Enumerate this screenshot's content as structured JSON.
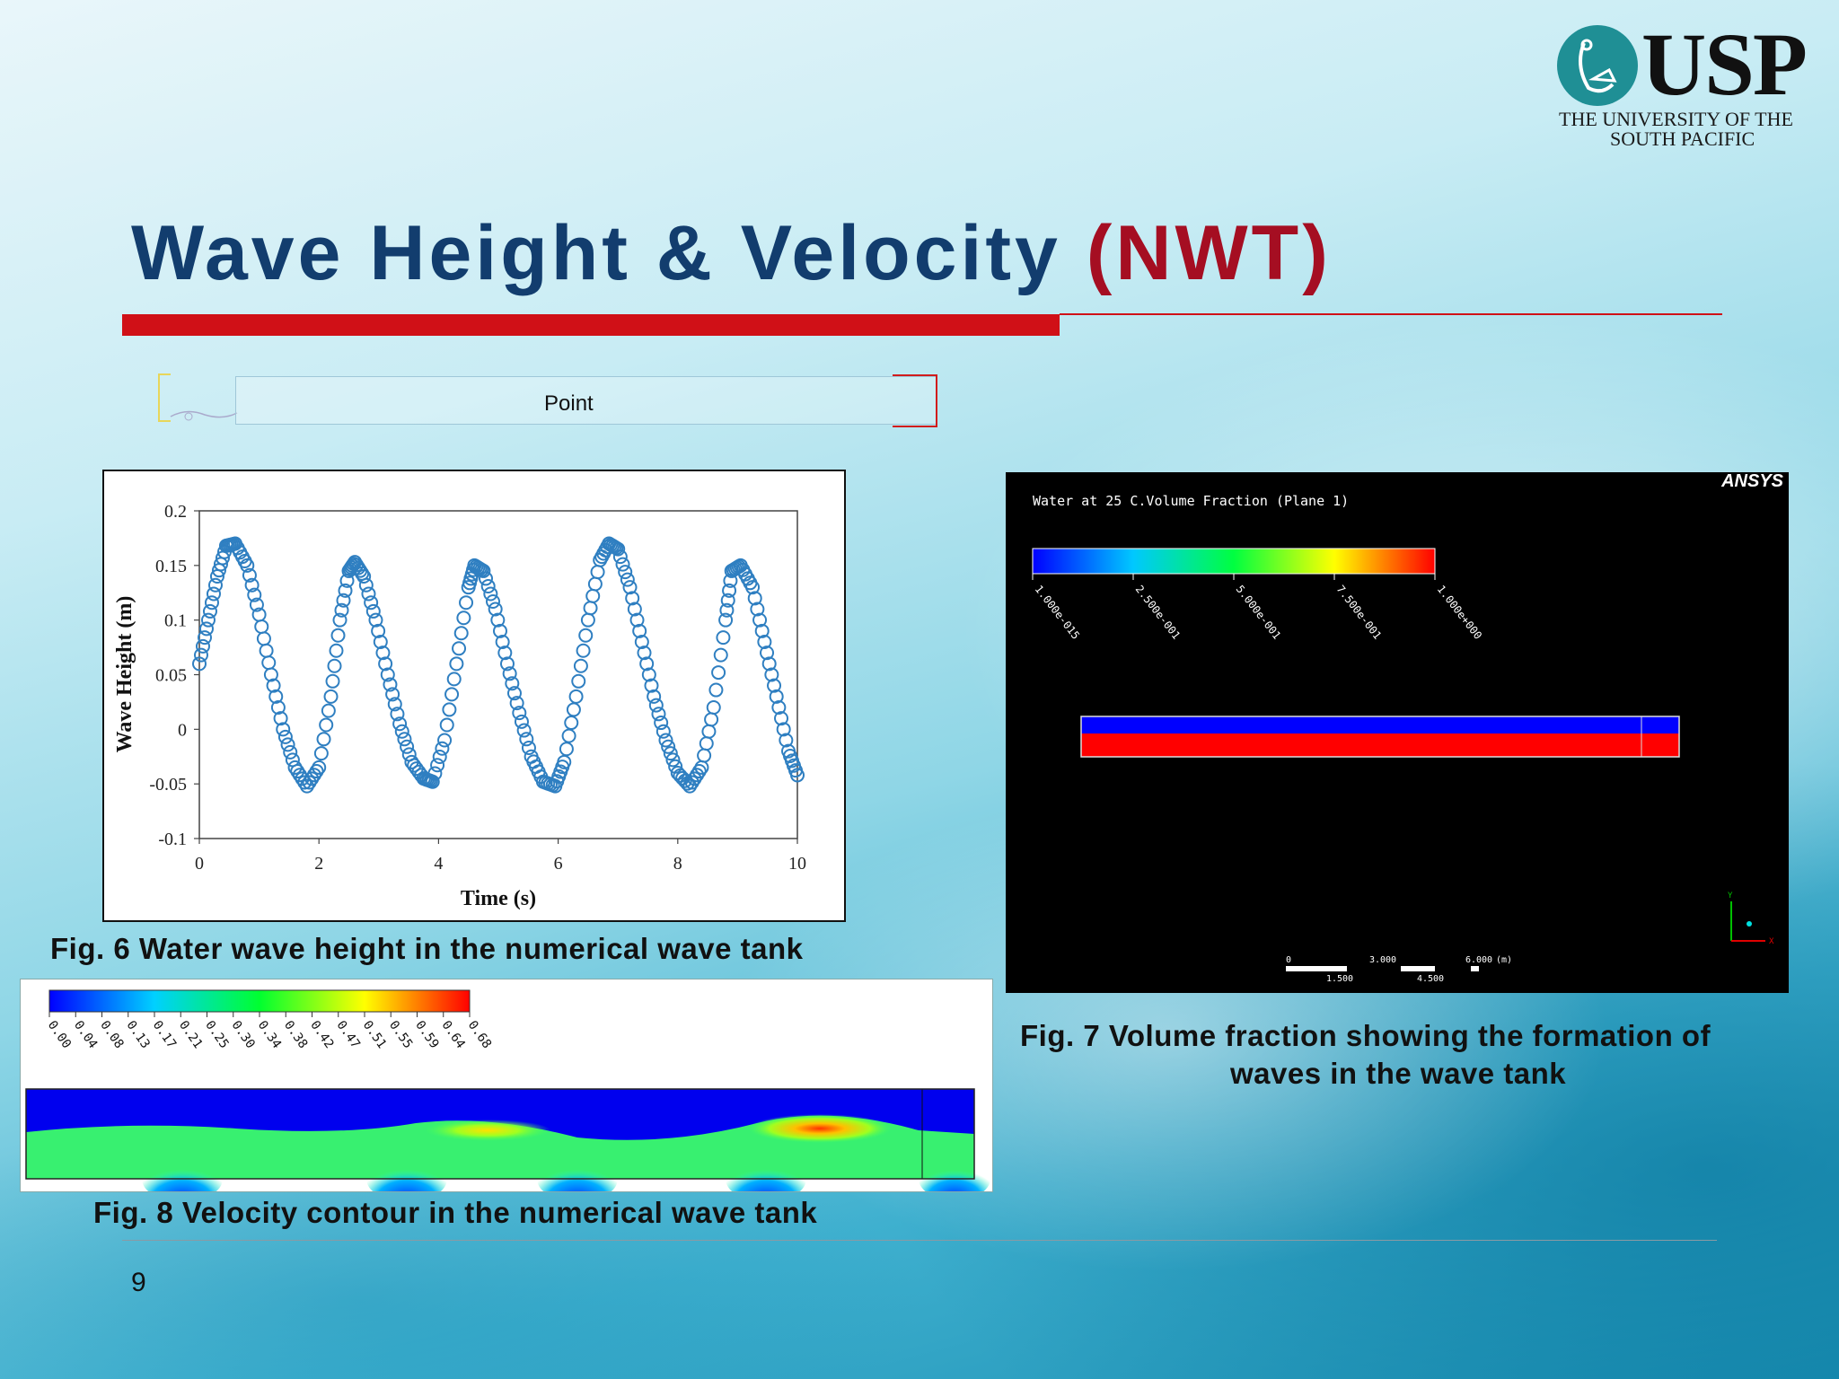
{
  "logo": {
    "name": "USP",
    "line1": "THE UNIVERSITY OF THE",
    "line2": "SOUTH PACIFIC"
  },
  "title": {
    "main": "Wave Height & Velocity ",
    "accent": "(NWT)",
    "main_color": "#123d6e",
    "accent_color": "#a50e22",
    "bar_color": "#d01017"
  },
  "tank_schematic": {
    "label": "Point"
  },
  "figures": {
    "fig6_caption": "Fig. 6  Water wave height in the numerical wave tank",
    "fig7_caption_line1": "Fig. 7   Volume fraction showing the formation of",
    "fig7_caption_line2": "waves in the wave tank",
    "fig8_caption": "Fig. 8  Velocity contour in the numerical wave tank"
  },
  "chart_data": {
    "type": "scatter",
    "title": "",
    "xlabel": "Time (s)",
    "ylabel": "Wave Height (m)",
    "xlim": [
      0,
      10
    ],
    "ylim": [
      -0.1,
      0.2
    ],
    "x_ticks": [
      "0",
      "2",
      "4",
      "6",
      "8",
      "10"
    ],
    "y_ticks": [
      "-0.1",
      "-0.05",
      "0",
      "0.05",
      "0.1",
      "0.15",
      "0.2"
    ],
    "marker": "open-circle",
    "marker_color": "#2f7fc1",
    "grid": false,
    "series": [
      {
        "x": [
          0,
          0.15,
          0.3,
          0.45,
          0.6,
          0.8,
          1.0,
          1.2,
          1.4,
          1.6,
          1.8,
          2.0,
          2.2,
          2.35,
          2.5,
          2.6,
          2.75,
          2.95,
          3.15,
          3.35,
          3.55,
          3.75,
          3.9,
          4.1,
          4.3,
          4.5,
          4.6,
          4.75,
          4.95,
          5.15,
          5.35,
          5.55,
          5.75,
          5.95,
          6.1,
          6.3,
          6.5,
          6.7,
          6.85,
          7.0,
          7.2,
          7.4,
          7.6,
          7.8,
          8.0,
          8.2,
          8.4,
          8.6,
          8.8,
          8.9,
          9.05,
          9.25,
          9.45,
          9.65,
          9.85,
          10.0
        ],
        "y": [
          0.06,
          0.1,
          0.14,
          0.168,
          0.17,
          0.15,
          0.105,
          0.05,
          0.0,
          -0.035,
          -0.052,
          -0.035,
          0.03,
          0.1,
          0.145,
          0.153,
          0.14,
          0.1,
          0.05,
          0.005,
          -0.03,
          -0.045,
          -0.048,
          -0.01,
          0.06,
          0.13,
          0.15,
          0.145,
          0.11,
          0.06,
          0.015,
          -0.025,
          -0.048,
          -0.052,
          -0.03,
          0.03,
          0.1,
          0.155,
          0.17,
          0.165,
          0.13,
          0.08,
          0.03,
          -0.01,
          -0.04,
          -0.052,
          -0.035,
          0.02,
          0.1,
          0.145,
          0.15,
          0.13,
          0.08,
          0.03,
          -0.02,
          -0.042
        ]
      }
    ]
  },
  "ansys": {
    "brand": "ANSYS",
    "legend_title": "Water at 25 C.Volume Fraction (Plane 1)",
    "legend_ticks": [
      "1.000e-015",
      "2.500e-001",
      "5.000e-001",
      "7.500e-001",
      "1.000e+000"
    ],
    "scale_top": [
      "0",
      "3.000",
      "6.000",
      "(m)"
    ],
    "scale_bottom": [
      "1.500",
      "4.500"
    ],
    "axis_y": "Y",
    "axis_x": "X",
    "water_color": "#ff0000",
    "air_color": "#0000ff"
  },
  "velocity_legend": {
    "ticks": [
      "0.00",
      "0.04",
      "0.08",
      "0.13",
      "0.17",
      "0.21",
      "0.25",
      "0.30",
      "0.34",
      "0.38",
      "0.42",
      "0.47",
      "0.51",
      "0.55",
      "0.59",
      "0.64",
      "0.68"
    ]
  },
  "footer": {
    "page_number": "9"
  }
}
